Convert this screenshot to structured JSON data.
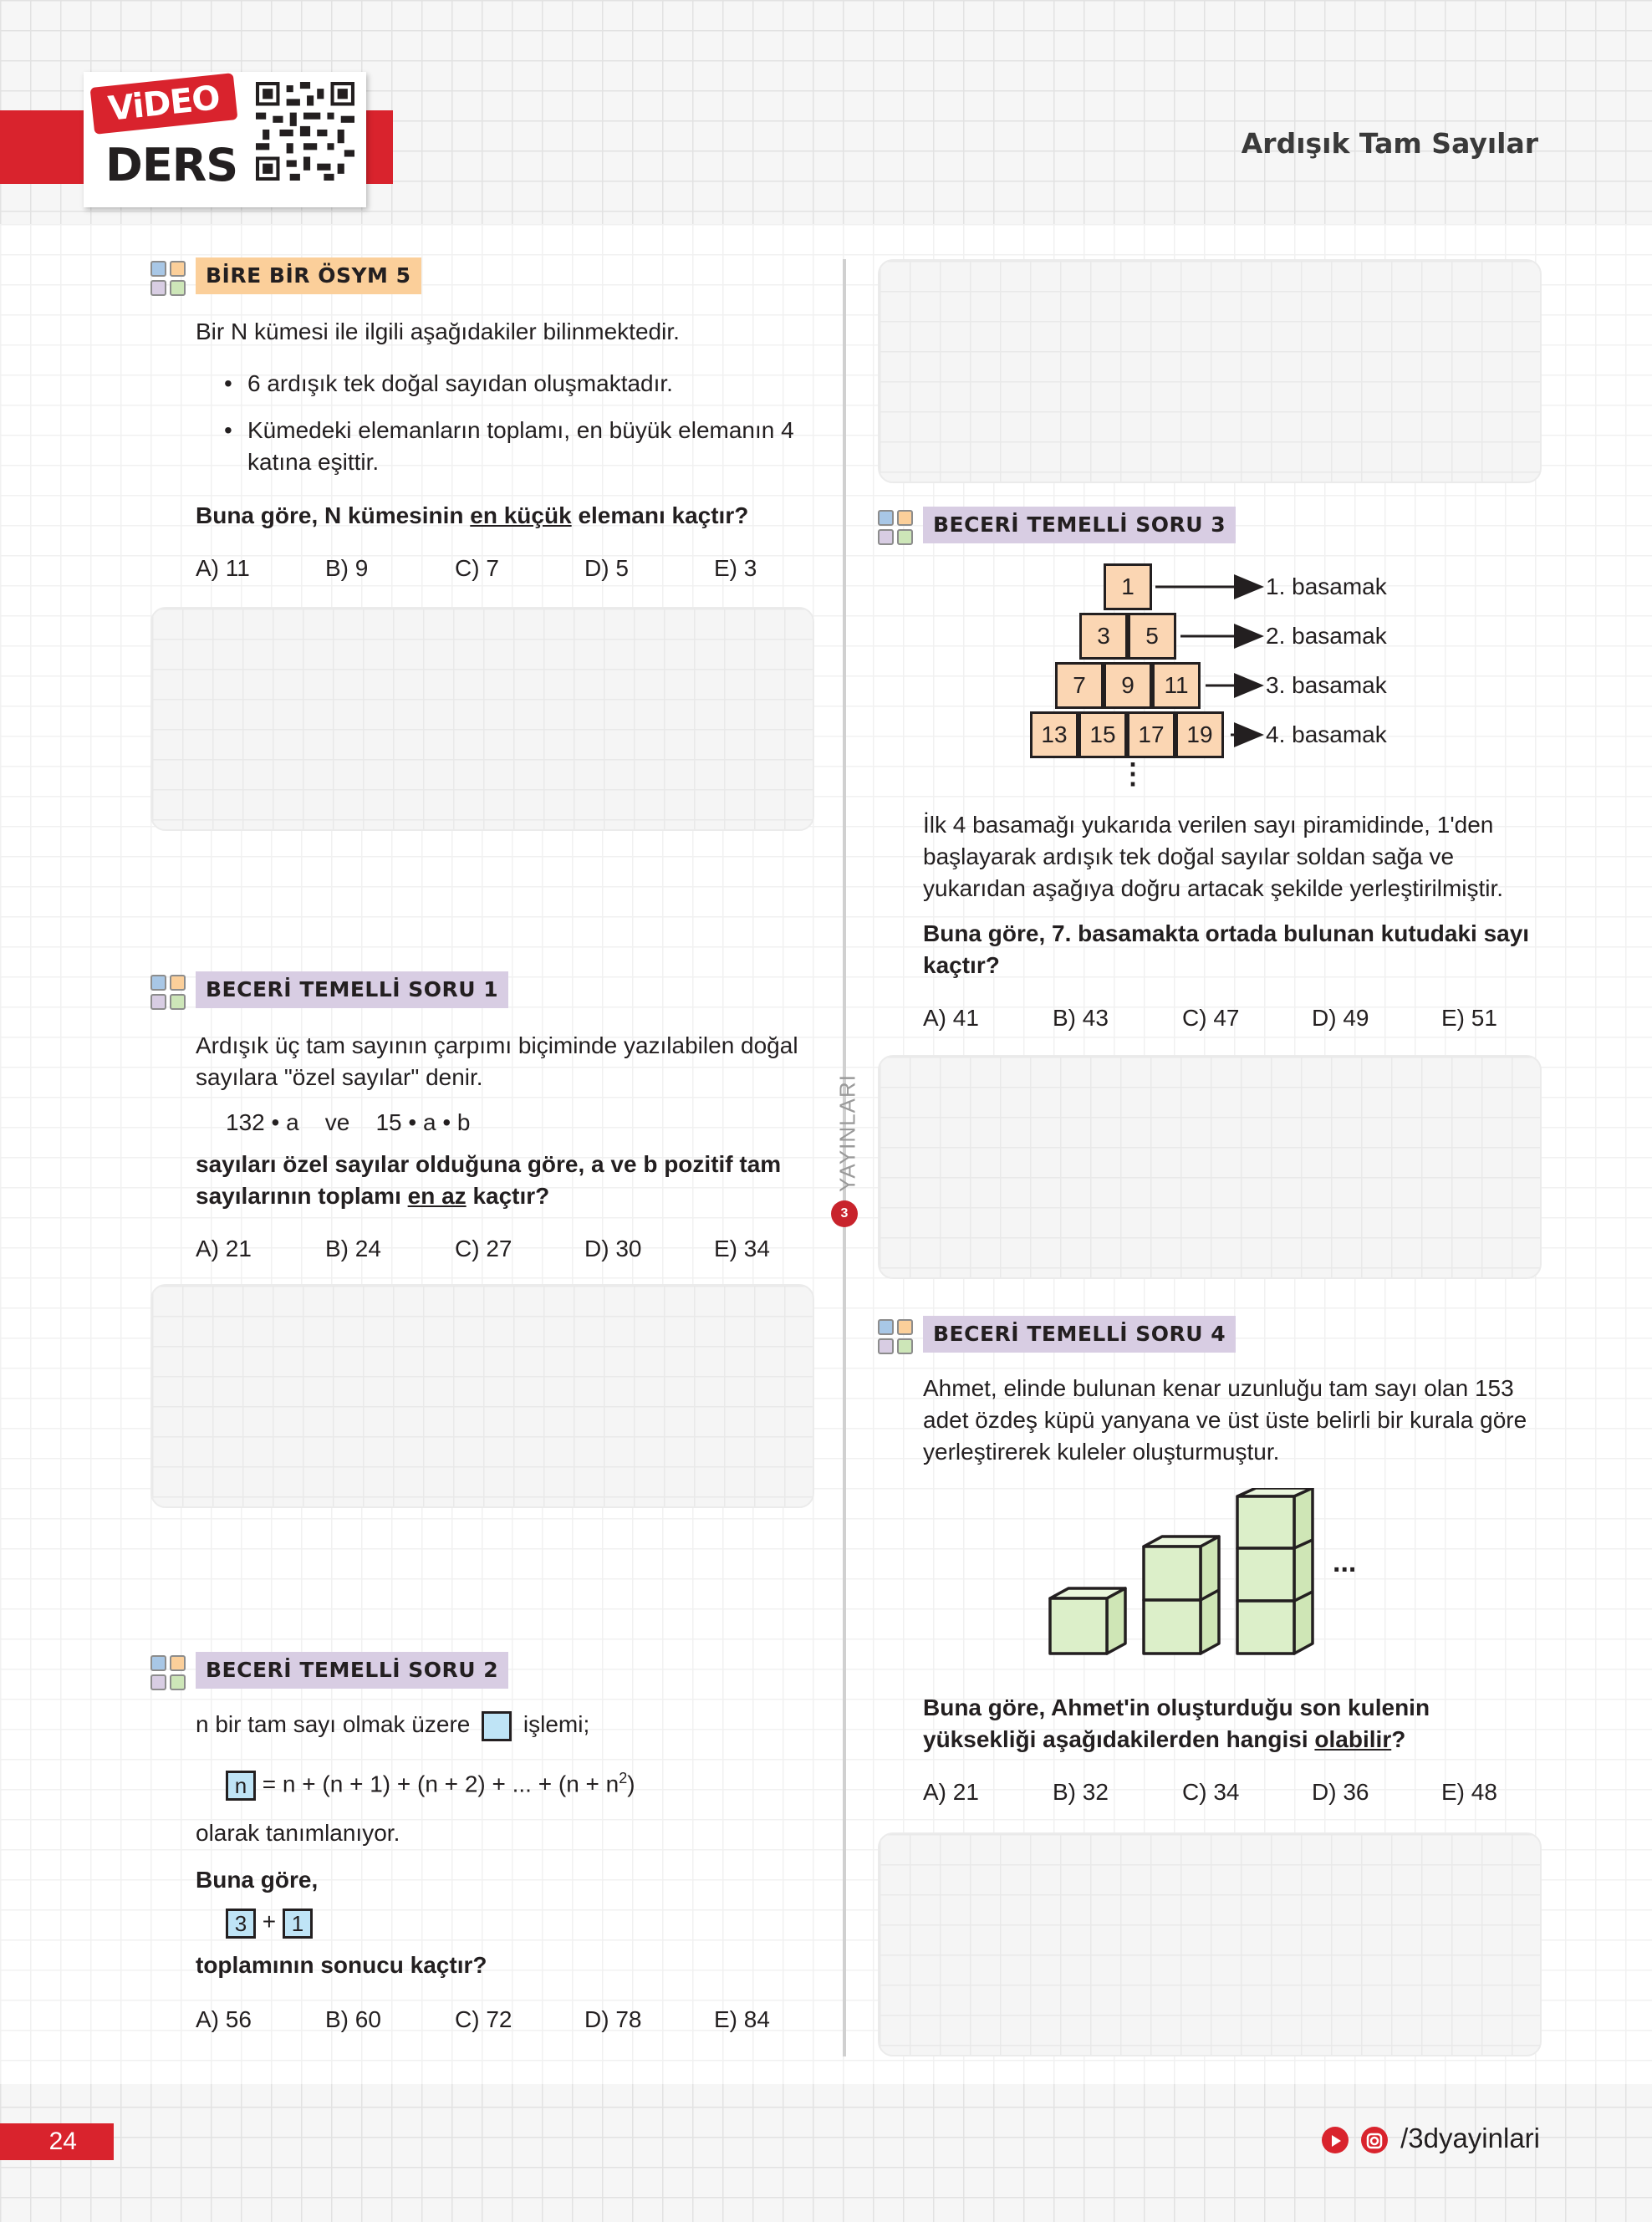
{
  "header": {
    "video_label": "ViDEO",
    "ders_label": "DERS",
    "title": "Ardışık Tam Sayılar"
  },
  "side_brand": "YAYINLARI",
  "q1": {
    "tag": "BİRE BİR ÖSYM 5",
    "intro": "Bir N kümesi ile ilgili aşağıdakiler bilinmektedir.",
    "bullet1": "6 ardışık tek doğal sayıdan oluşmaktadır.",
    "bullet2_line1": "Kümedeki elemanların toplamı, en büyük elemanın 4",
    "bullet2_line2": "katına eşittir.",
    "question_pre": "Buna göre, N kümesinin ",
    "question_u": "en küçük",
    "question_post": " elemanı kaçtır?",
    "options": [
      "A) 11",
      "B) 9",
      "C) 7",
      "D) 5",
      "E) 3"
    ]
  },
  "q2": {
    "tag": "BECERİ TEMELLİ SORU 1",
    "line1": "Ardışık üç tam sayının çarpımı biçiminde yazılabilen doğal",
    "line2": "sayılara \"özel sayılar\" denir.",
    "expr": "132 • a    ve    15 • a • b",
    "question1": "sayıları özel sayılar olduğuna göre, a ve b pozitif tam",
    "question2_pre": "sayılarının toplamı ",
    "question2_u": "en az",
    "question2_post": " kaçtır?",
    "options": [
      "A) 21",
      "B) 24",
      "C) 27",
      "D) 30",
      "E) 34"
    ]
  },
  "q3": {
    "tag": "BECERİ TEMELLİ SORU 2",
    "line1_pre": "n bir tam sayı olmak üzere",
    "line1_post": "işlemi;",
    "box_n": "n",
    "formula": "= n + (n + 1) + (n + 2) + ... + (n + n",
    "formula_sup": "2",
    "formula_end": ")",
    "defined": "olarak tanımlanıyor.",
    "buna_gore": "Buna göre,",
    "box_3": "3",
    "plus": "+",
    "box_1": "1",
    "question": "toplamının sonucu kaçtır?",
    "options": [
      "A) 56",
      "B) 60",
      "C) 72",
      "D) 78",
      "E) 84"
    ]
  },
  "q4": {
    "tag": "BECERİ TEMELLİ SORU 3",
    "pyramid_rows": [
      [
        "1"
      ],
      [
        "3",
        "5"
      ],
      [
        "7",
        "9",
        "11"
      ],
      [
        "13",
        "15",
        "17",
        "19"
      ]
    ],
    "row_labels": [
      "1. basamak",
      "2. basamak",
      "3. basamak",
      "4. basamak"
    ],
    "dots": "⋮",
    "line1": "İlk 4 basamağı yukarıda verilen sayı piramidinde, 1'den",
    "line2": "başlayarak ardışık tek doğal sayılar soldan sağa ve",
    "line3": "yukarıdan aşağıya doğru artacak şekilde yerleştirilmiştir.",
    "question1": "Buna göre, 7. basamakta ortada bulunan kutudaki sayı",
    "question2": "kaçtır?",
    "options": [
      "A) 41",
      "B) 43",
      "C) 47",
      "D) 49",
      "E) 51"
    ]
  },
  "q5": {
    "tag": "BECERİ TEMELLİ SORU 4",
    "line1": "Ahmet, elinde bulunan kenar uzunluğu tam sayı olan 153",
    "line2": "adet özdeş küpü yanyana ve üst üste belirli bir kurala göre",
    "line3": "yerleştirerek kuleler oluşturmuştur.",
    "dots": "...",
    "question1": "Buna göre, Ahmet'in oluşturduğu son kulenin",
    "question2_pre": "yüksekliği aşağıdakilerden hangisi ",
    "question2_u": "olabilir",
    "question2_post": "?",
    "options": [
      "A) 21",
      "B) 32",
      "C) 34",
      "D) 36",
      "E) 48"
    ]
  },
  "footer": {
    "page_number": "24",
    "social": "/3dyayinlari"
  },
  "colors": {
    "brand_red": "#d9232d",
    "tag_orange": "#fbcf9a",
    "tag_purple": "#d8cde3",
    "pyramid_fill": "#fbd6b3",
    "cube_fill": "#dcefc9",
    "box_blue": "#bfe4f6"
  }
}
